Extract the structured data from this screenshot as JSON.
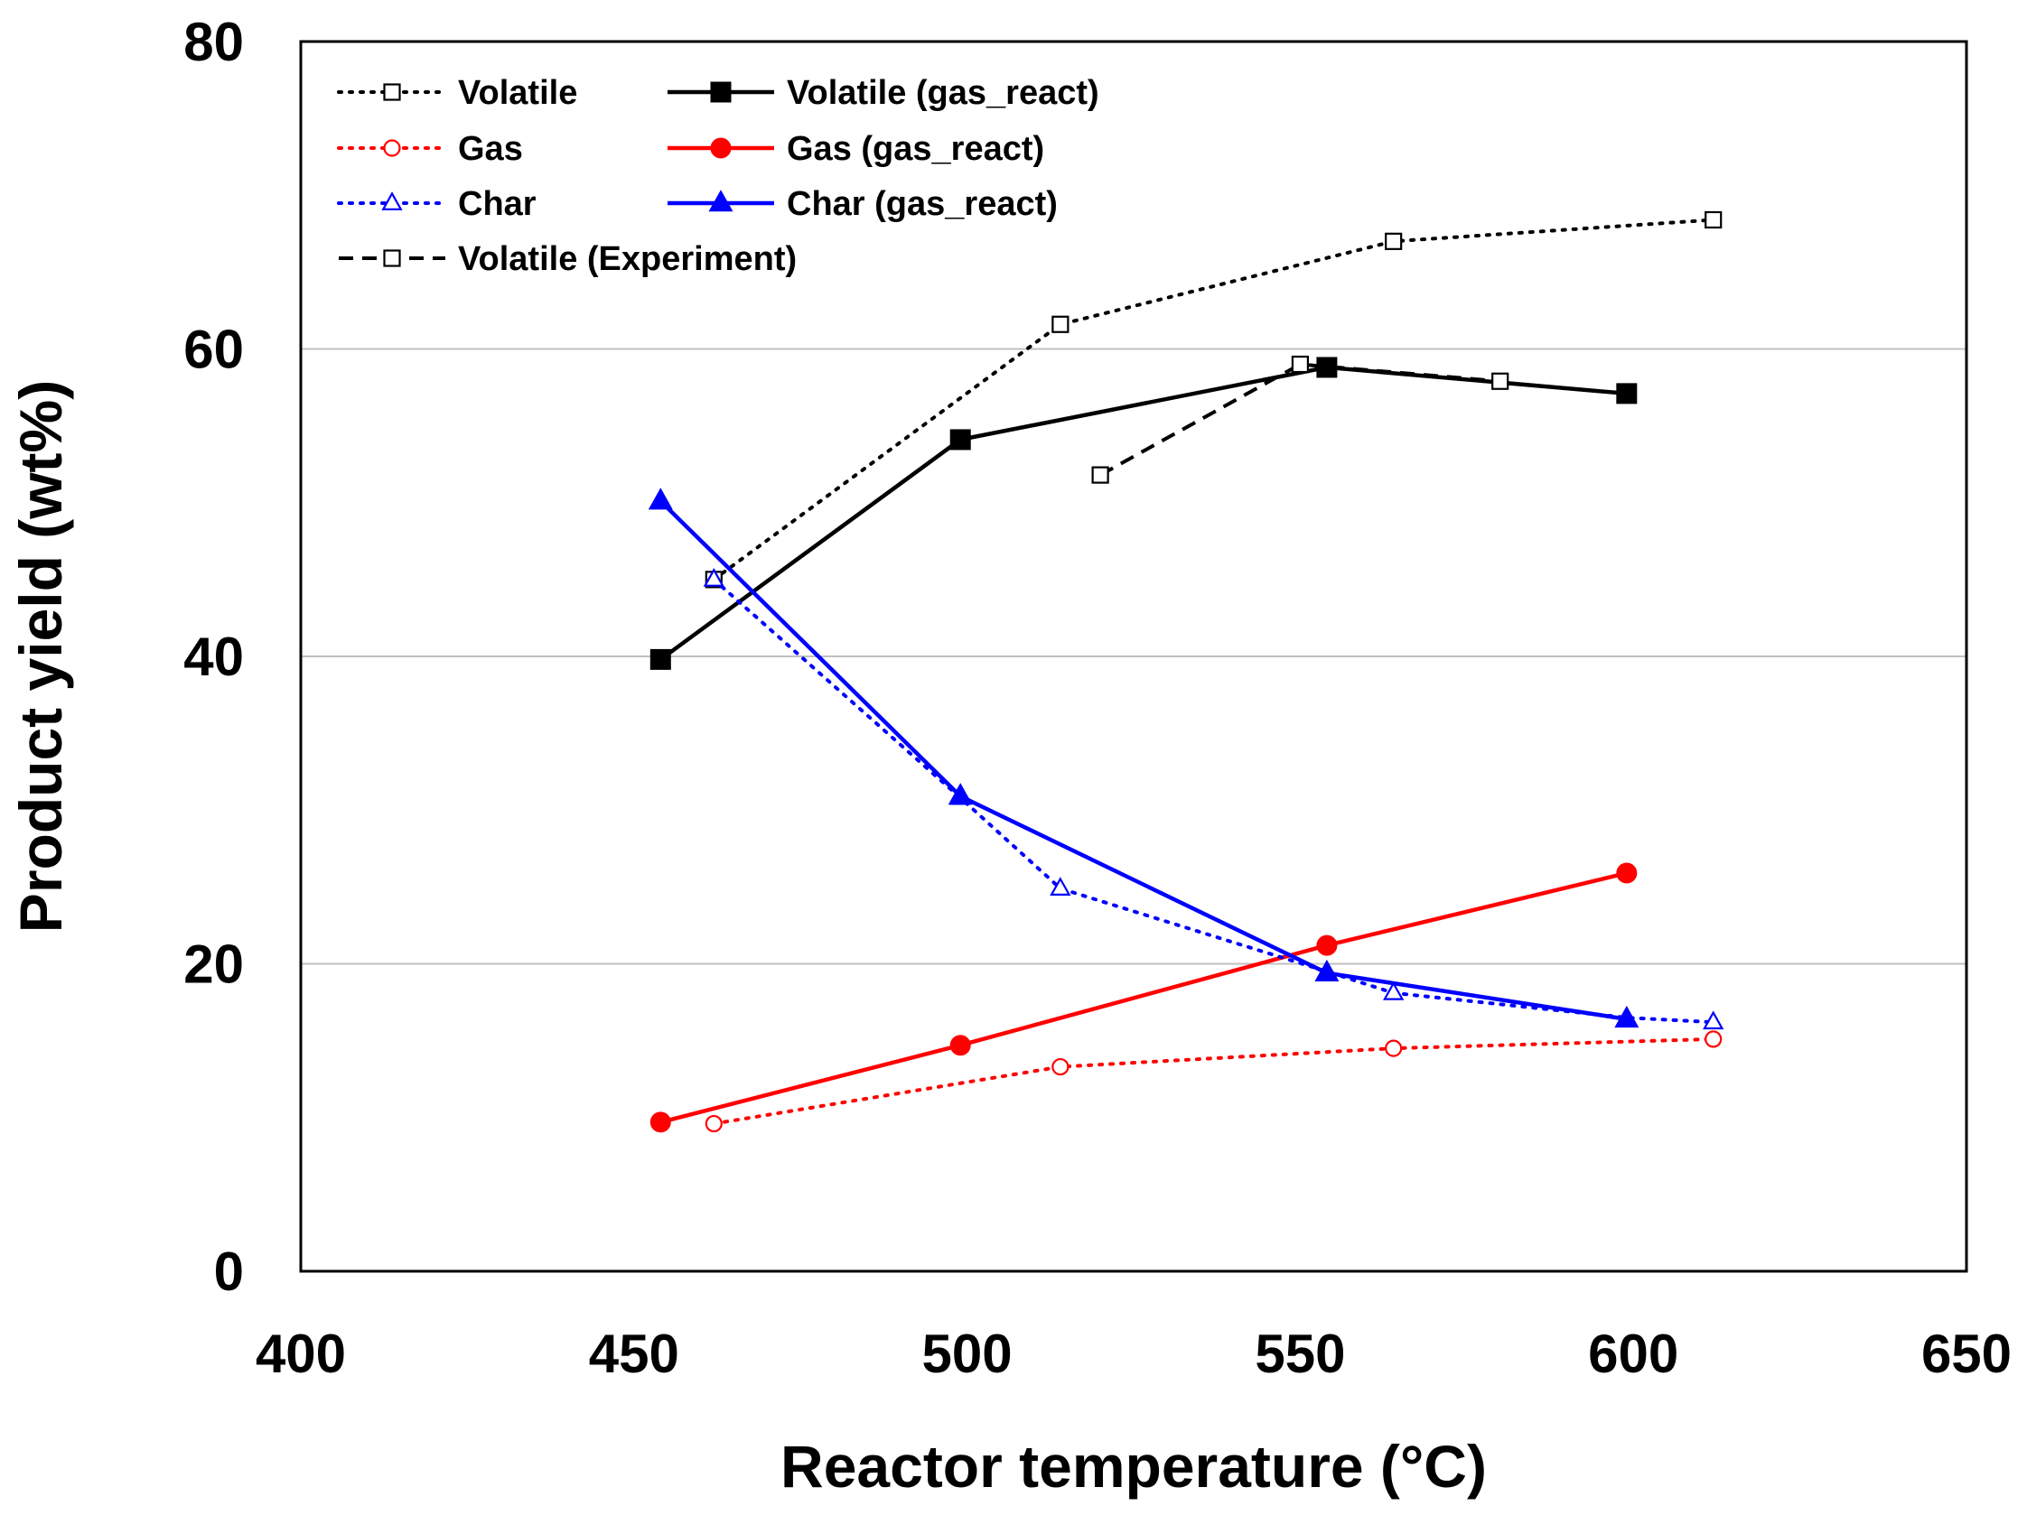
{
  "chart_data": {
    "type": "line",
    "title": "",
    "xlabel": "Reactor temperature (°C)",
    "ylabel": "Product yield (wt%)",
    "xlim": [
      400,
      650
    ],
    "ylim": [
      0,
      80
    ],
    "xticks": [
      400,
      450,
      500,
      550,
      600,
      650
    ],
    "yticks": [
      0,
      20,
      40,
      60,
      80
    ],
    "grid": "horizontal",
    "legend_position": "top-left",
    "series": [
      {
        "name": "Volatile",
        "color": "#000000",
        "line_style": "dotted",
        "marker": "open-square",
        "points": [
          {
            "x": 462,
            "y": 45.0
          },
          {
            "x": 514,
            "y": 61.6
          },
          {
            "x": 564,
            "y": 67.0
          },
          {
            "x": 612,
            "y": 68.4
          }
        ]
      },
      {
        "name": "Volatile (gas_react)",
        "color": "#000000",
        "line_style": "solid",
        "marker": "filled-square",
        "points": [
          {
            "x": 454,
            "y": 39.8
          },
          {
            "x": 499,
            "y": 54.1
          },
          {
            "x": 554,
            "y": 58.8
          },
          {
            "x": 599,
            "y": 57.1
          }
        ]
      },
      {
        "name": "Gas",
        "color": "#ff0000",
        "line_style": "dotted",
        "marker": "open-circle",
        "points": [
          {
            "x": 462,
            "y": 9.6
          },
          {
            "x": 514,
            "y": 13.3
          },
          {
            "x": 564,
            "y": 14.5
          },
          {
            "x": 612,
            "y": 15.1
          }
        ]
      },
      {
        "name": "Gas (gas_react)",
        "color": "#ff0000",
        "line_style": "solid",
        "marker": "filled-circle",
        "points": [
          {
            "x": 454,
            "y": 9.7
          },
          {
            "x": 499,
            "y": 14.7
          },
          {
            "x": 554,
            "y": 21.2
          },
          {
            "x": 599,
            "y": 25.9
          }
        ]
      },
      {
        "name": "Char",
        "color": "#0000ff",
        "line_style": "dotted",
        "marker": "open-triangle",
        "points": [
          {
            "x": 462,
            "y": 45.0
          },
          {
            "x": 499,
            "y": 30.8
          },
          {
            "x": 514,
            "y": 24.9
          },
          {
            "x": 554,
            "y": 19.5
          },
          {
            "x": 564,
            "y": 18.1
          },
          {
            "x": 599,
            "y": 16.5
          },
          {
            "x": 612,
            "y": 16.2
          }
        ]
      },
      {
        "name": "Char (gas_react)",
        "color": "#0000ff",
        "line_style": "solid",
        "marker": "filled-triangle",
        "points": [
          {
            "x": 454,
            "y": 50.1
          },
          {
            "x": 499,
            "y": 30.9
          },
          {
            "x": 554,
            "y": 19.4
          },
          {
            "x": 599,
            "y": 16.4
          }
        ]
      },
      {
        "name": "Volatile (Experiment)",
        "color": "#000000",
        "line_style": "dashed",
        "marker": "open-square",
        "points": [
          {
            "x": 520,
            "y": 51.8
          },
          {
            "x": 550,
            "y": 59.0
          },
          {
            "x": 580,
            "y": 57.9
          }
        ]
      }
    ],
    "legend_order": [
      0,
      1,
      2,
      3,
      4,
      5,
      6
    ]
  }
}
